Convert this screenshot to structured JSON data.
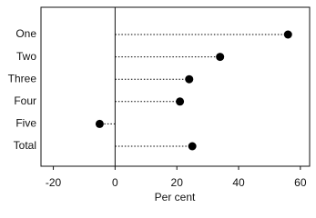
{
  "chart_data": {
    "type": "dot",
    "x_label": "Per cent",
    "categories": [
      "One",
      "Two",
      "Three",
      "Four",
      "Five",
      "Total"
    ],
    "values": [
      56,
      34,
      24,
      21,
      -5,
      25
    ],
    "color": "#000000",
    "xlim": [
      -24,
      63
    ],
    "xticks": [
      -20,
      0,
      20,
      40,
      60
    ]
  }
}
